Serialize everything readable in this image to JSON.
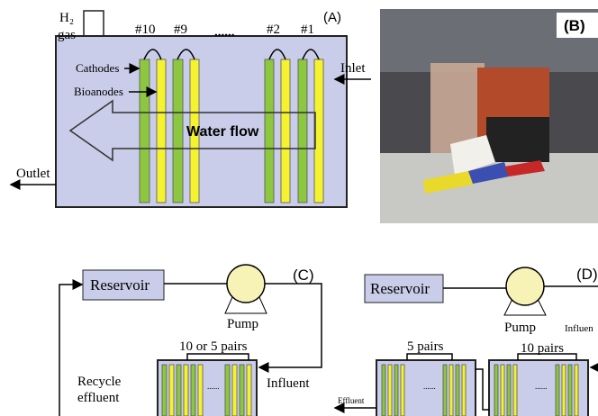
{
  "panel_a": {
    "label": "(A)",
    "h2": "H₂",
    "gas": "gas",
    "pairs": [
      "#10",
      "#9",
      "......",
      "#2",
      "#1"
    ],
    "cathodes": "Cathodes",
    "bioanodes": "Bioanodes",
    "flow": "Water flow",
    "inlet": "Inlet",
    "outlet": "Outlet"
  },
  "panel_b": {
    "label": "(B)"
  },
  "panel_c": {
    "label": "(C)",
    "reservoir": "Reservoir",
    "pump": "Pump",
    "pairs": "10 or 5 pairs",
    "dots": "......",
    "influent": "Influent",
    "recycle": [
      "Recycle",
      "effluent"
    ]
  },
  "panel_d": {
    "label": "(D)",
    "reservoir": "Reservoir",
    "pump": "Pump",
    "influent": "Influen",
    "pairs": [
      "5 pairs",
      "10 pairs"
    ],
    "dots": [
      "......",
      "......"
    ],
    "effluent": "Effluent"
  }
}
